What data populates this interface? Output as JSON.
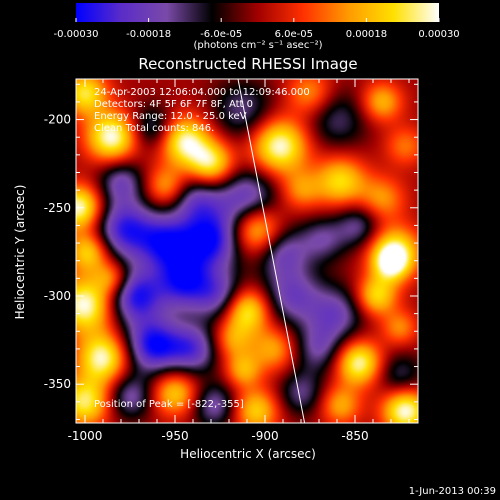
{
  "chart_data": {
    "type": "heatmap",
    "title": "Reconstructed RHESSI Image",
    "xlabel": "Heliocentric X (arcsec)",
    "ylabel": "Heliocentric Y (arcsec)",
    "xlim": [
      -1005,
      -815
    ],
    "ylim": [
      -372,
      -177
    ],
    "x_ticks": [
      -1000,
      -950,
      -900,
      -850
    ],
    "x_tick_labels": [
      "-1000",
      "-950",
      "-900",
      "-850"
    ],
    "y_ticks": [
      -200,
      -250,
      -300,
      -350
    ],
    "y_tick_labels": [
      "-200",
      "-250",
      "-300",
      "-350"
    ],
    "colorbar": {
      "range": [
        -0.0003,
        0.0003
      ],
      "ticks": [
        -0.0003,
        -0.00018,
        -6e-05,
        6e-05,
        0.00018,
        0.0003
      ],
      "tick_labels": [
        "-0.00030",
        "-0.00018",
        "-6.0e-05",
        "6.0e-05",
        "0.00018",
        "0.00030"
      ],
      "unit_label": "(photons cm⁻² s⁻¹ asec⁻²)",
      "colormap": [
        "#0000ff",
        "#5b2cc8",
        "#7a4aa8",
        "#000000",
        "#a00000",
        "#ff3000",
        "#ff9a00",
        "#ffe000",
        "#ffffff"
      ]
    },
    "annotations": {
      "time": "24-Apr-2003 12:06:04.000 to 12:09:46.000",
      "detectors": "Detectors: 4F 5F 6F 7F 8F, Att 0",
      "energy": "Energy Range: 12.0 - 25.0 keV",
      "clean": "Clean   Total counts: 846.",
      "peak": "Position of Peak = [-822,-355]"
    },
    "peak": [
      -822,
      -355
    ],
    "limb_line": [
      [
        -915,
        -177
      ],
      [
        -878,
        -372
      ]
    ],
    "blobs": [
      {
        "x": -1000,
        "y": -185,
        "v": 0.8,
        "s": 9
      },
      {
        "x": -985,
        "y": -210,
        "v": 1.0,
        "s": 10
      },
      {
        "x": -962,
        "y": -205,
        "v": -0.5,
        "s": 9
      },
      {
        "x": -945,
        "y": -212,
        "v": 0.95,
        "s": 10
      },
      {
        "x": -930,
        "y": -225,
        "v": 0.85,
        "s": 9
      },
      {
        "x": -912,
        "y": -195,
        "v": -0.45,
        "s": 12
      },
      {
        "x": -892,
        "y": -215,
        "v": 1.0,
        "s": 11
      },
      {
        "x": -875,
        "y": -185,
        "v": 0.5,
        "s": 9
      },
      {
        "x": -860,
        "y": -200,
        "v": -0.4,
        "s": 12
      },
      {
        "x": -835,
        "y": -190,
        "v": 0.6,
        "s": 8
      },
      {
        "x": -822,
        "y": -215,
        "v": 0.4,
        "s": 8
      },
      {
        "x": -980,
        "y": -235,
        "v": -0.55,
        "s": 9
      },
      {
        "x": -955,
        "y": -238,
        "v": 0.55,
        "s": 8
      },
      {
        "x": -938,
        "y": -245,
        "v": -0.55,
        "s": 10
      },
      {
        "x": -910,
        "y": -245,
        "v": -0.7,
        "s": 12
      },
      {
        "x": -880,
        "y": -240,
        "v": 0.45,
        "s": 8
      },
      {
        "x": -858,
        "y": -235,
        "v": 0.75,
        "s": 10
      },
      {
        "x": -835,
        "y": -245,
        "v": 0.5,
        "s": 9
      },
      {
        "x": -1003,
        "y": -250,
        "v": 1.0,
        "s": 9
      },
      {
        "x": -998,
        "y": -275,
        "v": 0.75,
        "s": 8
      },
      {
        "x": -978,
        "y": -262,
        "v": -0.85,
        "s": 12
      },
      {
        "x": -955,
        "y": -270,
        "v": -0.8,
        "s": 11
      },
      {
        "x": -930,
        "y": -268,
        "v": -0.95,
        "s": 12
      },
      {
        "x": -905,
        "y": -262,
        "v": 0.85,
        "s": 10
      },
      {
        "x": -890,
        "y": -275,
        "v": -0.55,
        "s": 10
      },
      {
        "x": -868,
        "y": -268,
        "v": -0.45,
        "s": 9
      },
      {
        "x": -848,
        "y": -260,
        "v": -0.5,
        "s": 9
      },
      {
        "x": -828,
        "y": -275,
        "v": 0.9,
        "s": 10
      },
      {
        "x": -1000,
        "y": -305,
        "v": 1.0,
        "s": 11
      },
      {
        "x": -985,
        "y": -290,
        "v": 0.55,
        "s": 7
      },
      {
        "x": -972,
        "y": -300,
        "v": -0.9,
        "s": 11
      },
      {
        "x": -945,
        "y": -292,
        "v": -0.85,
        "s": 11
      },
      {
        "x": -925,
        "y": -300,
        "v": -0.6,
        "s": 10
      },
      {
        "x": -910,
        "y": -308,
        "v": 0.9,
        "s": 9
      },
      {
        "x": -885,
        "y": -300,
        "v": -0.6,
        "s": 12
      },
      {
        "x": -860,
        "y": -310,
        "v": -0.55,
        "s": 11
      },
      {
        "x": -838,
        "y": -300,
        "v": 0.75,
        "s": 8
      },
      {
        "x": -825,
        "y": -318,
        "v": 0.45,
        "s": 7
      },
      {
        "x": -990,
        "y": -335,
        "v": 0.95,
        "s": 10
      },
      {
        "x": -962,
        "y": -328,
        "v": -0.95,
        "s": 11
      },
      {
        "x": -940,
        "y": -330,
        "v": -0.7,
        "s": 10
      },
      {
        "x": -918,
        "y": -325,
        "v": 0.5,
        "s": 8
      },
      {
        "x": -895,
        "y": -330,
        "v": 0.55,
        "s": 9
      },
      {
        "x": -870,
        "y": -330,
        "v": -0.5,
        "s": 10
      },
      {
        "x": -848,
        "y": -338,
        "v": 0.95,
        "s": 9
      },
      {
        "x": -825,
        "y": -345,
        "v": -0.4,
        "s": 9
      },
      {
        "x": -1000,
        "y": -360,
        "v": 0.85,
        "s": 10
      },
      {
        "x": -975,
        "y": -357,
        "v": -0.55,
        "s": 9
      },
      {
        "x": -950,
        "y": -355,
        "v": 0.7,
        "s": 9
      },
      {
        "x": -928,
        "y": -362,
        "v": -0.55,
        "s": 9
      },
      {
        "x": -905,
        "y": -365,
        "v": 0.7,
        "s": 9
      },
      {
        "x": -880,
        "y": -355,
        "v": -0.45,
        "s": 9
      },
      {
        "x": -858,
        "y": -362,
        "v": 0.55,
        "s": 8
      },
      {
        "x": -822,
        "y": -365,
        "v": 1.0,
        "s": 9
      },
      {
        "x": -830,
        "y": -282,
        "v": 0.6,
        "s": 7
      },
      {
        "x": -912,
        "y": -342,
        "v": 0.55,
        "s": 7
      }
    ]
  },
  "footer": {
    "timestamp": "1-Jun-2013 00:39"
  }
}
